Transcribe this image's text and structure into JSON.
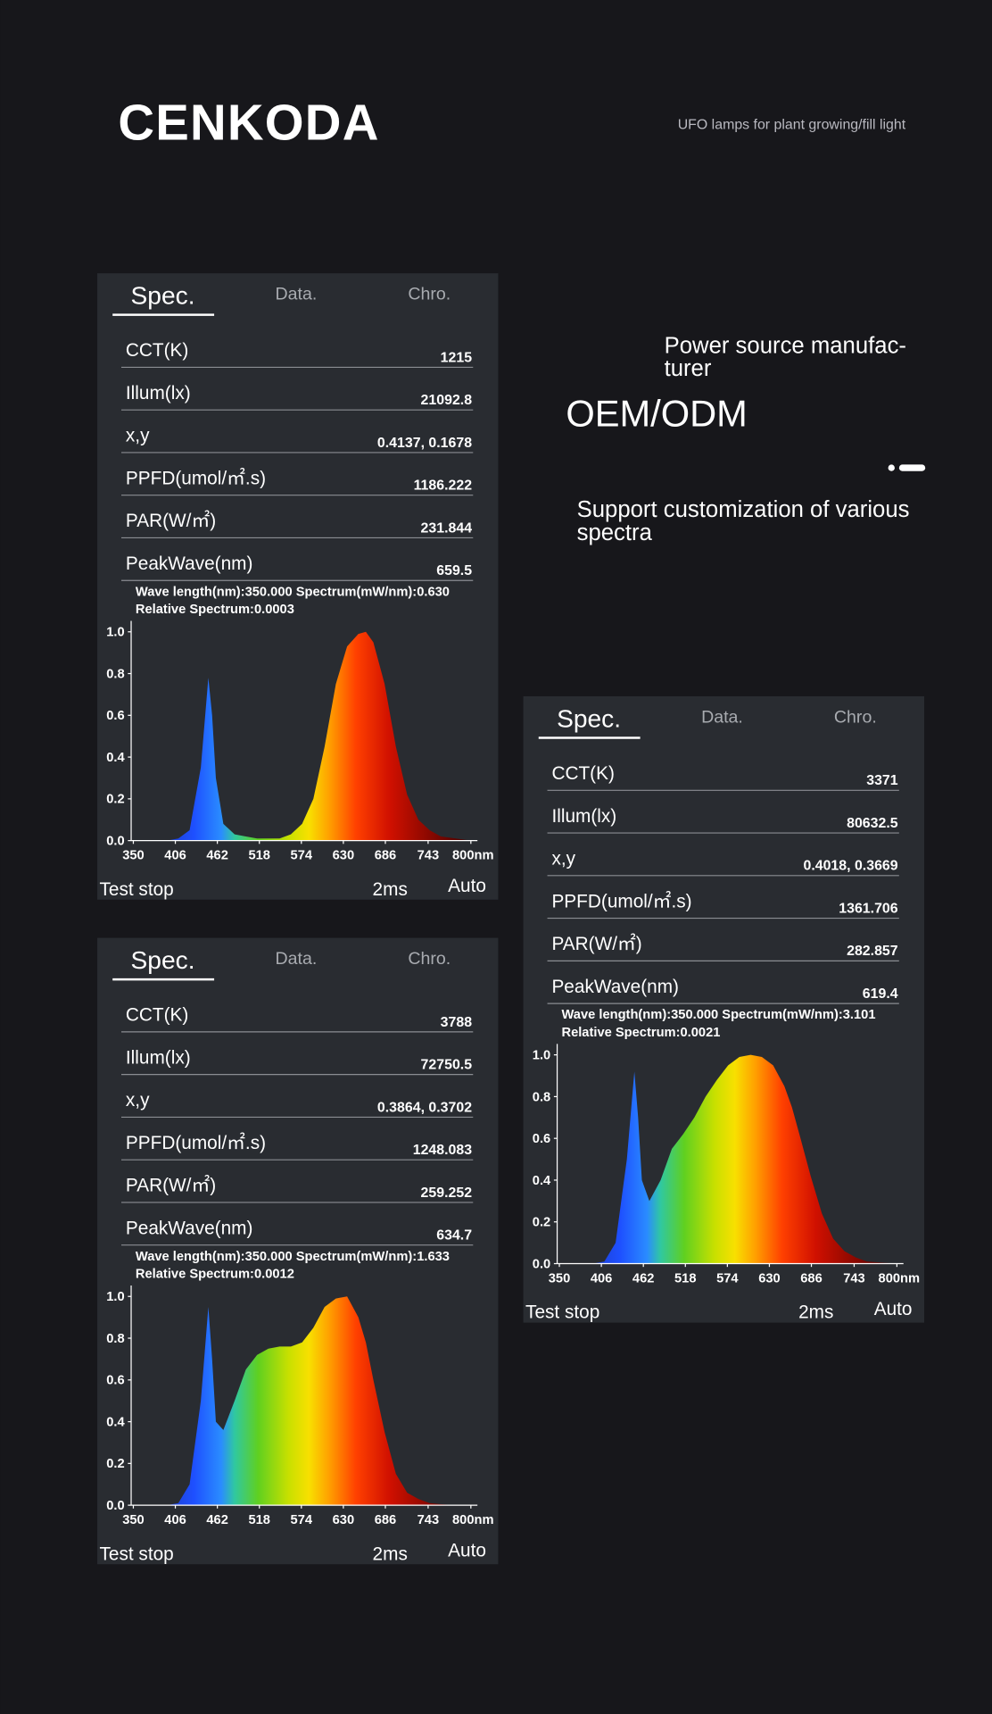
{
  "header": {
    "brand": "CENKODA",
    "tagline": "UFO lamps for plant growing/fill light"
  },
  "features": {
    "power_line1": "Power source manufac-",
    "power_line2": "turer",
    "oem": "OEM/ODM",
    "support_line1": "Support customization of various",
    "support_line2": "spectra"
  },
  "panels": [
    {
      "tabs": [
        "Spec.",
        "Data.",
        "Chro."
      ],
      "rows": [
        {
          "label": "CCT(K)",
          "value": "1215"
        },
        {
          "label": "Illum(lx)",
          "value": "21092.8"
        },
        {
          "label": "x,y",
          "value": "0.4137, 0.1678"
        },
        {
          "label": "PPFD(umol/㎡.s)",
          "value": "1186.222"
        },
        {
          "label": "PAR(W/㎡)",
          "value": "231.844"
        },
        {
          "label": "PeakWave(nm)",
          "value": "659.5"
        }
      ],
      "info": [
        "Wave length(nm):350.000  Spectrum(mW/nm):0.630",
        "Relative Spectrum:0.0003"
      ],
      "chart_data": {
        "type": "area",
        "x": [
          350,
          365,
          380,
          395,
          410,
          425,
          440,
          450,
          455,
          460,
          470,
          485,
          500,
          515,
          530,
          545,
          560,
          575,
          590,
          605,
          620,
          635,
          650,
          660,
          670,
          685,
          700,
          715,
          730,
          745,
          760,
          780,
          800
        ],
        "values": [
          0,
          0,
          0,
          0,
          0.01,
          0.05,
          0.35,
          0.78,
          0.6,
          0.3,
          0.08,
          0.03,
          0.02,
          0.01,
          0.01,
          0.01,
          0.03,
          0.08,
          0.2,
          0.45,
          0.75,
          0.93,
          0.99,
          1.0,
          0.95,
          0.75,
          0.45,
          0.22,
          0.1,
          0.05,
          0.02,
          0.01,
          0
        ],
        "xlim": [
          350,
          800
        ],
        "ylim": [
          0,
          1
        ],
        "xticks": [
          350,
          406,
          462,
          518,
          574,
          630,
          686,
          743,
          {
            "value": 800,
            "label": "800nm"
          }
        ],
        "yticks": [
          {
            "value": 0,
            "label": "0.0"
          },
          0.2,
          0.4,
          0.6,
          0.8,
          {
            "value": 1,
            "label": "1.0"
          }
        ]
      },
      "footer": {
        "status": "Test stop",
        "time": "2ms",
        "mode": "Auto"
      }
    },
    {
      "tabs": [
        "Spec.",
        "Data.",
        "Chro."
      ],
      "rows": [
        {
          "label": "CCT(K)",
          "value": "3788"
        },
        {
          "label": "Illum(lx)",
          "value": "72750.5"
        },
        {
          "label": "x,y",
          "value": "0.3864, 0.3702"
        },
        {
          "label": "PPFD(umol/㎡.s)",
          "value": "1248.083"
        },
        {
          "label": "PAR(W/㎡)",
          "value": "259.252"
        },
        {
          "label": "PeakWave(nm)",
          "value": "634.7"
        }
      ],
      "info": [
        "Wave length(nm):350.000  Spectrum(mW/nm):1.633",
        "Relative Spectrum:0.0012"
      ],
      "chart_data": {
        "type": "area",
        "x": [
          350,
          365,
          380,
          395,
          410,
          425,
          440,
          450,
          455,
          460,
          470,
          485,
          500,
          515,
          530,
          545,
          560,
          575,
          590,
          605,
          620,
          635,
          650,
          660,
          670,
          685,
          700,
          715,
          730,
          745,
          760,
          780,
          800
        ],
        "values": [
          0,
          0,
          0,
          0,
          0.01,
          0.1,
          0.5,
          0.95,
          0.7,
          0.4,
          0.36,
          0.5,
          0.65,
          0.72,
          0.75,
          0.76,
          0.76,
          0.78,
          0.85,
          0.95,
          0.99,
          1.0,
          0.9,
          0.78,
          0.6,
          0.35,
          0.15,
          0.06,
          0.03,
          0.01,
          0.005,
          0,
          0
        ],
        "xlim": [
          350,
          800
        ],
        "ylim": [
          0,
          1
        ],
        "xticks": [
          350,
          406,
          462,
          518,
          574,
          630,
          686,
          743,
          {
            "value": 800,
            "label": "800nm"
          }
        ],
        "yticks": [
          {
            "value": 0,
            "label": "0.0"
          },
          0.2,
          0.4,
          0.6,
          0.8,
          {
            "value": 1,
            "label": "1.0"
          }
        ]
      },
      "footer": {
        "status": "Test stop",
        "time": "2ms",
        "mode": "Auto"
      }
    },
    {
      "tabs": [
        "Spec.",
        "Data.",
        "Chro."
      ],
      "rows": [
        {
          "label": "CCT(K)",
          "value": "3371"
        },
        {
          "label": "Illum(lx)",
          "value": "80632.5"
        },
        {
          "label": "x,y",
          "value": "0.4018, 0.3669"
        },
        {
          "label": "PPFD(umol/㎡.s)",
          "value": "1361.706"
        },
        {
          "label": "PAR(W/㎡)",
          "value": "282.857"
        },
        {
          "label": "PeakWave(nm)",
          "value": "619.4"
        }
      ],
      "info": [
        "Wave length(nm):350.000  Spectrum(mW/nm):3.101",
        "Relative Spectrum:0.0021"
      ],
      "chart_data": {
        "type": "area",
        "x": [
          350,
          365,
          380,
          395,
          410,
          425,
          440,
          450,
          455,
          460,
          470,
          485,
          500,
          515,
          530,
          545,
          560,
          575,
          590,
          605,
          620,
          635,
          650,
          660,
          670,
          685,
          700,
          715,
          730,
          745,
          760,
          780,
          800
        ],
        "values": [
          0,
          0,
          0,
          0,
          0.01,
          0.1,
          0.5,
          0.92,
          0.7,
          0.4,
          0.3,
          0.4,
          0.55,
          0.62,
          0.7,
          0.8,
          0.88,
          0.95,
          0.99,
          1.0,
          0.99,
          0.95,
          0.85,
          0.75,
          0.62,
          0.42,
          0.24,
          0.12,
          0.06,
          0.03,
          0.01,
          0.005,
          0
        ],
        "xlim": [
          350,
          800
        ],
        "ylim": [
          0,
          1
        ],
        "xticks": [
          350,
          406,
          462,
          518,
          574,
          630,
          686,
          743,
          {
            "value": 800,
            "label": "800nm"
          }
        ],
        "yticks": [
          {
            "value": 0,
            "label": "0.0"
          },
          0.2,
          0.4,
          0.6,
          0.8,
          {
            "value": 1,
            "label": "1.0"
          }
        ]
      },
      "footer": {
        "status": "Test stop",
        "time": "2ms",
        "mode": "Auto"
      }
    }
  ]
}
